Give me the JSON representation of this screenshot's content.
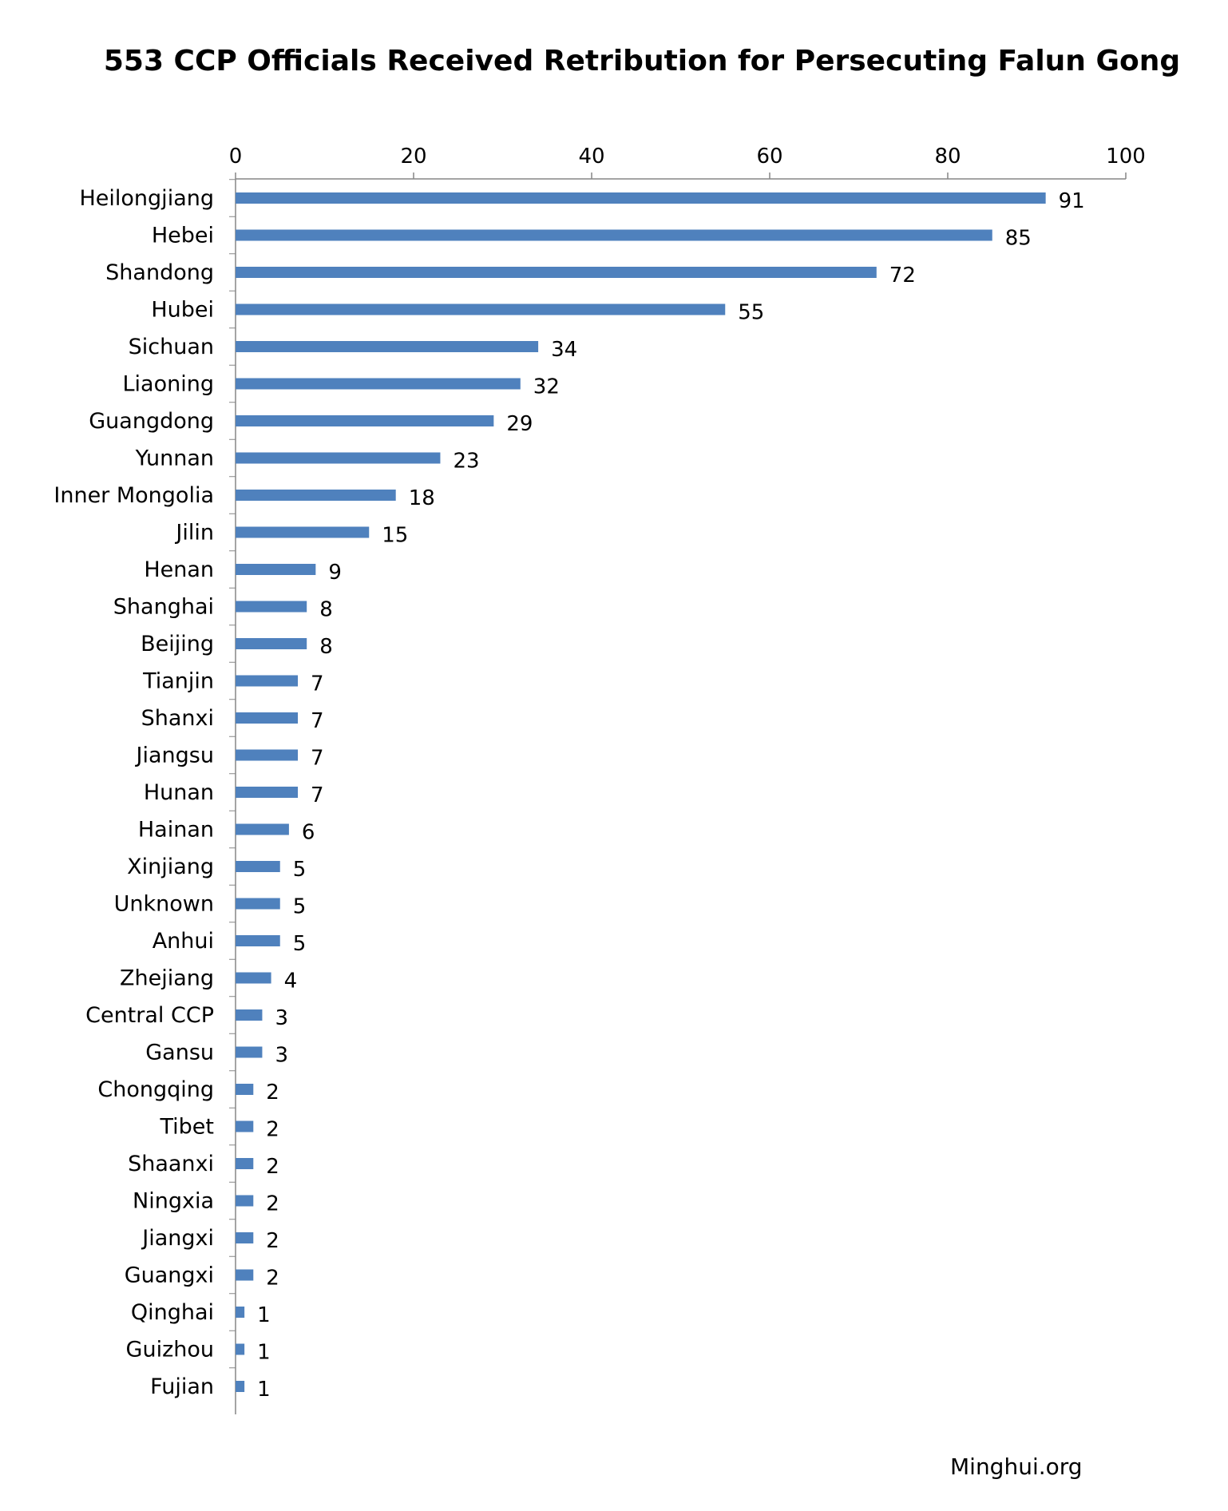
{
  "chart_data": {
    "type": "bar",
    "orientation": "horizontal",
    "title": "553 CCP Officials Received Retribution for Persecuting Falun Gong",
    "xlabel": "",
    "ylabel": "",
    "xlim": [
      0,
      100
    ],
    "x_ticks": [
      "0",
      "20",
      "40",
      "60",
      "80",
      "100"
    ],
    "x_axis_position": "top",
    "grid": false,
    "legend": "none",
    "bar_color": "#4f81bd",
    "categories": [
      "Heilongjiang",
      "Hebei",
      "Shandong",
      "Hubei",
      "Sichuan",
      "Liaoning",
      "Guangdong",
      "Yunnan",
      "Inner Mongolia",
      "Jilin",
      "Henan",
      "Shanghai",
      "Beijing",
      "Tianjin",
      "Shanxi",
      "Jiangsu",
      "Hunan",
      "Hainan",
      "Xinjiang",
      "Unknown",
      "Anhui",
      "Zhejiang",
      "Central CCP",
      "Gansu",
      "Chongqing",
      "Tibet",
      "Shaanxi",
      "Ningxia",
      "Jiangxi",
      "Guangxi",
      "Qinghai",
      "Guizhou",
      "Fujian"
    ],
    "values": [
      91,
      85,
      72,
      55,
      34,
      32,
      29,
      23,
      18,
      15,
      9,
      8,
      8,
      7,
      7,
      7,
      7,
      6,
      5,
      5,
      5,
      4,
      3,
      3,
      2,
      2,
      2,
      2,
      2,
      2,
      1,
      1,
      1
    ]
  },
  "source": "Minghui.org"
}
